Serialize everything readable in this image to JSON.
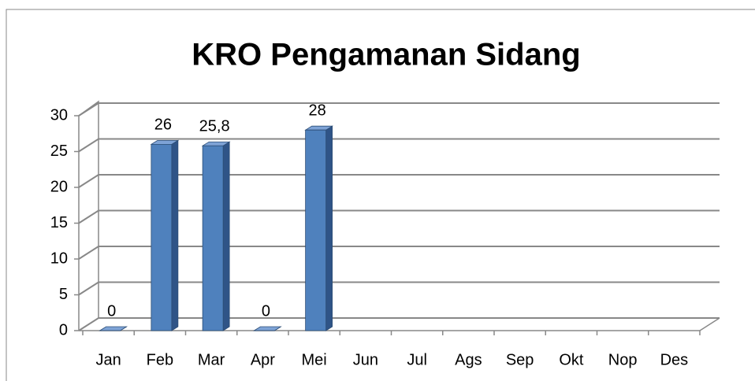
{
  "chart_data": {
    "type": "bar",
    "title": "KRO Pengamanan Sidang",
    "categories": [
      "Jan",
      "Feb",
      "Mar",
      "Apr",
      "Mei",
      "Jun",
      "Jul",
      "Ags",
      "Sep",
      "Okt",
      "Nop",
      "Des"
    ],
    "values": [
      0,
      26,
      25.8,
      0,
      28,
      null,
      null,
      null,
      null,
      null,
      null,
      null
    ],
    "value_labels": [
      "0",
      "26",
      "25,8",
      "0",
      "28",
      null,
      null,
      null,
      null,
      null,
      null,
      null
    ],
    "color": "#4f81bd",
    "ylim": [
      0,
      30
    ],
    "yticks": [
      0,
      5,
      10,
      15,
      20,
      25,
      30
    ],
    "grid": true
  }
}
